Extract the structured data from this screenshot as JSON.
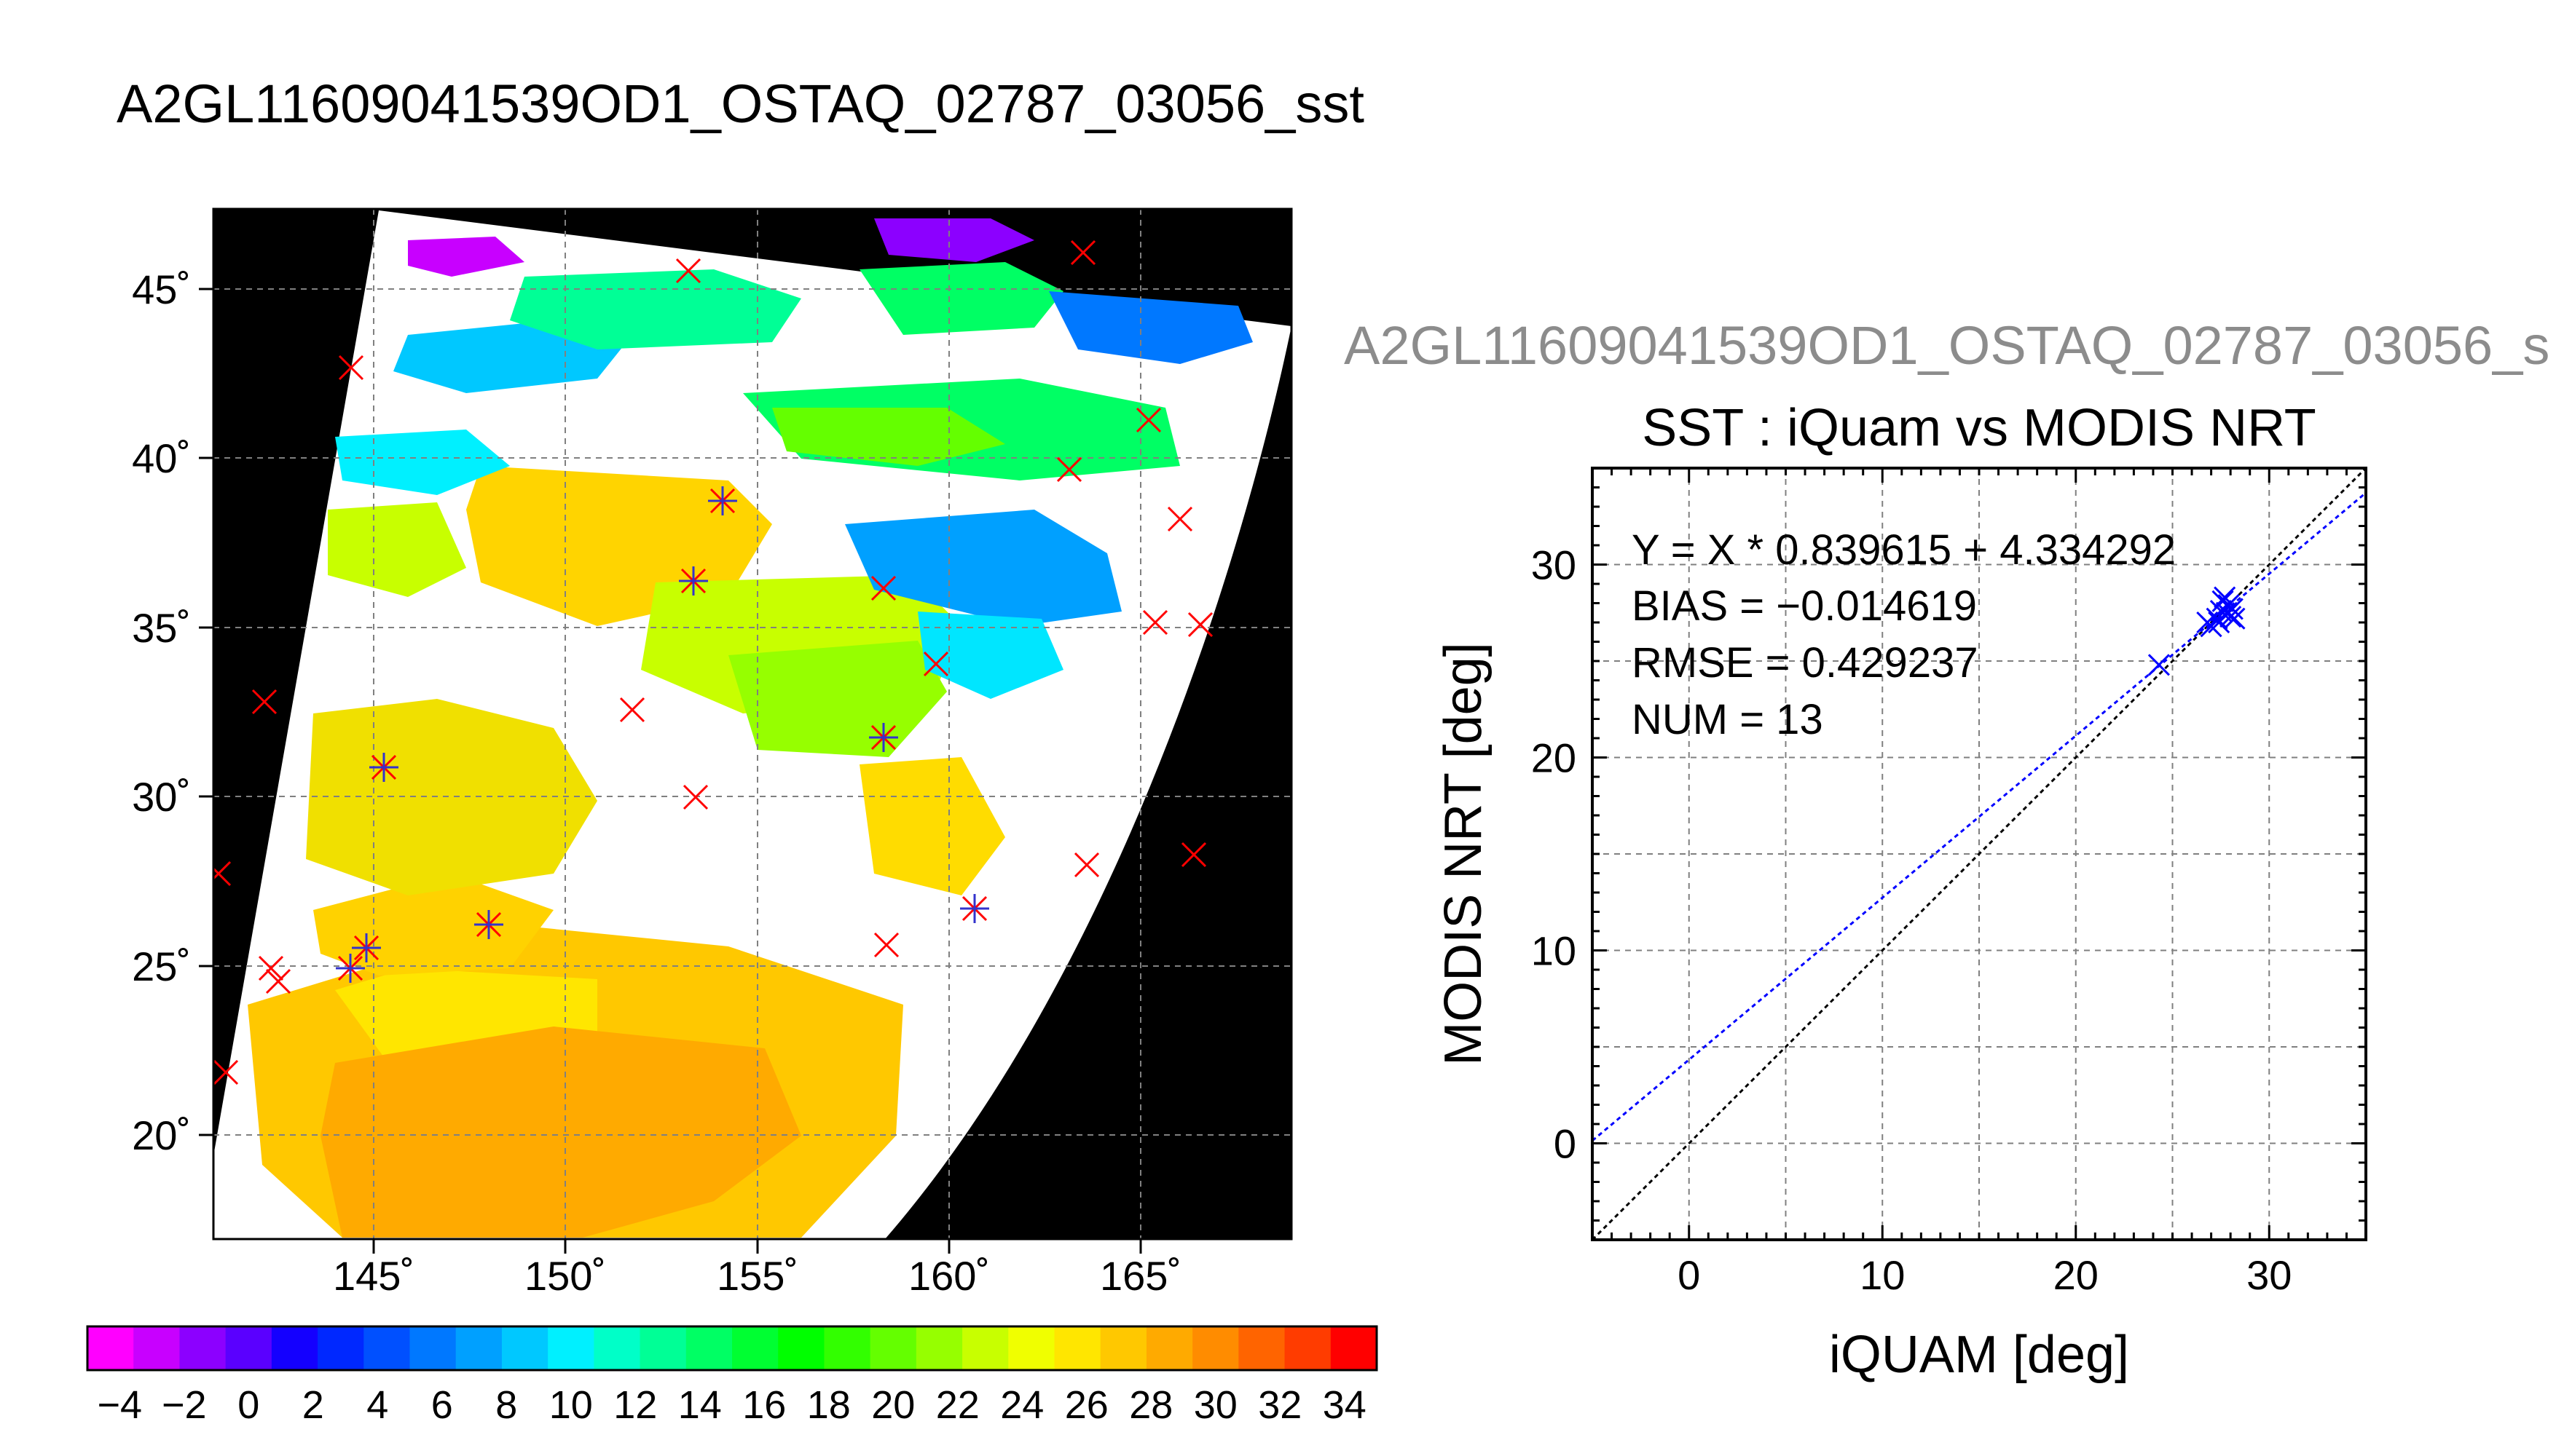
{
  "main_title": "A2GL11609041539OD1_OSTAQ_02787_03056_sst",
  "sub_title": "A2GL11609041539OD1_OSTAQ_02787_03056_s",
  "colors": {
    "background": "#ffffff",
    "map_background": "#000000",
    "observation_marker": "#ff0000",
    "matched_marker": "#3333cc",
    "regression_line": "#0000ff",
    "identity_line": "#000000",
    "grid": "#808080"
  },
  "map": {
    "lat_ticks": [
      "45˚",
      "40˚",
      "35˚",
      "30˚",
      "25˚",
      "20˚"
    ],
    "lon_ticks": [
      "145˚",
      "150˚",
      "155˚",
      "160˚",
      "165˚"
    ],
    "colorbar_ticks": [
      "−4",
      "−2",
      "0",
      "2",
      "4",
      "6",
      "8",
      "10",
      "12",
      "14",
      "16",
      "18",
      "20",
      "22",
      "24",
      "26",
      "28",
      "30",
      "32",
      "34"
    ],
    "colorbar_range": [
      -5,
      35
    ],
    "colorbar_colors": [
      "#ff00ff",
      "#c800ff",
      "#8c00ff",
      "#5a00ff",
      "#1400ff",
      "#0028ff",
      "#0050ff",
      "#0078ff",
      "#00a0ff",
      "#00c8ff",
      "#00f0ff",
      "#00ffc8",
      "#00ff96",
      "#00ff64",
      "#00ff32",
      "#00ff00",
      "#32ff00",
      "#64ff00",
      "#96ff00",
      "#c8ff00",
      "#f0ff00",
      "#ffe600",
      "#ffc800",
      "#ffaa00",
      "#ff8c00",
      "#ff6400",
      "#ff3c00",
      "#ff0000"
    ]
  },
  "chart_data": {
    "type": "scatter",
    "title": "SST : iQuam vs MODIS NRT",
    "xlabel": "iQUAM [deg]",
    "ylabel": "MODIS NRT [deg]",
    "xlim": [
      -5,
      35
    ],
    "ylim": [
      -5,
      35
    ],
    "x_ticks": [
      "0",
      "10",
      "20",
      "30"
    ],
    "y_ticks": [
      "0",
      "10",
      "20",
      "30"
    ],
    "grid": true,
    "annotations": {
      "equation": "Y = X * 0.839615 + 4.334292",
      "bias": "BIAS = −0.014619",
      "rmse": "RMSE = 0.429237",
      "num": "NUM = 13"
    },
    "regression": {
      "slope": 0.839615,
      "intercept": 4.334292
    },
    "points": [
      {
        "x": 24.3,
        "y": 24.8
      },
      {
        "x": 26.8,
        "y": 27.0
      },
      {
        "x": 27.0,
        "y": 26.8
      },
      {
        "x": 27.3,
        "y": 27.2
      },
      {
        "x": 27.5,
        "y": 27.6
      },
      {
        "x": 27.6,
        "y": 28.1
      },
      {
        "x": 27.8,
        "y": 27.5
      },
      {
        "x": 27.9,
        "y": 27.9
      },
      {
        "x": 28.0,
        "y": 27.3
      },
      {
        "x": 28.1,
        "y": 27.7
      },
      {
        "x": 27.7,
        "y": 28.3
      },
      {
        "x": 27.4,
        "y": 27.0
      },
      {
        "x": 28.2,
        "y": 27.2
      }
    ]
  }
}
